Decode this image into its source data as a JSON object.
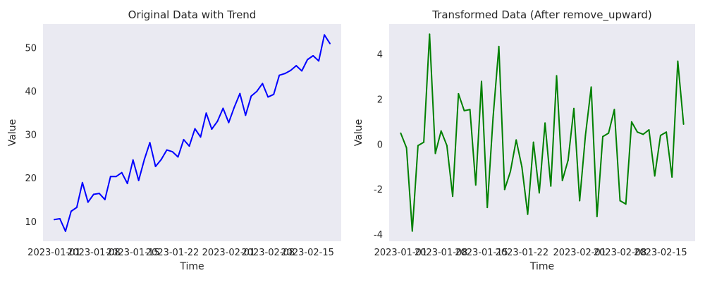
{
  "chart_data": [
    {
      "type": "line",
      "title": "Original Data with Trend",
      "xlabel": "Time",
      "ylabel": "Value",
      "x_start": "2023-01-01",
      "x_ticks": [
        "2023-01-01",
        "2023-01-08",
        "2023-01-15",
        "2023-01-22",
        "2023-02-01",
        "2023-02-08",
        "2023-02-15"
      ],
      "y_ticks": [
        10,
        20,
        30,
        40,
        50
      ],
      "xlim": [
        "2022-12-30",
        "2023-02-21"
      ],
      "ylim": [
        5.5,
        55.5
      ],
      "grid": false,
      "background": "#eaeaf2",
      "series": [
        {
          "color": "#0000ff",
          "values": [
            10.5,
            10.7,
            7.8,
            12.4,
            13.3,
            19.0,
            14.5,
            16.3,
            16.5,
            15.1,
            20.4,
            20.4,
            21.3,
            18.8,
            24.2,
            19.5,
            24.3,
            28.2,
            22.7,
            24.3,
            26.5,
            26.1,
            24.9,
            28.9,
            27.4,
            31.4,
            29.5,
            35.0,
            31.3,
            33.1,
            36.1,
            32.8,
            36.4,
            39.5,
            34.5,
            38.9,
            40.0,
            41.8,
            38.7,
            39.3,
            43.7,
            44.1,
            44.8,
            45.9,
            44.7,
            47.3,
            48.2,
            47.0,
            53.0,
            51.0
          ]
        }
      ]
    },
    {
      "type": "line",
      "title": "Transformed Data (After remove_upward)",
      "xlabel": "Time",
      "ylabel": "Value",
      "x_start": "2023-01-01",
      "x_ticks": [
        "2023-01-01",
        "2023-01-08",
        "2023-01-15",
        "2023-01-22",
        "2023-02-01",
        "2023-02-08",
        "2023-02-15"
      ],
      "y_ticks": [
        -4,
        -2,
        0,
        2,
        4
      ],
      "xlim": [
        "2022-12-30",
        "2023-02-21"
      ],
      "ylim": [
        -4.3,
        5.35
      ],
      "grid": false,
      "background": "#eaeaf2",
      "series": [
        {
          "color": "#008000",
          "values": [
            0.5,
            -0.15,
            -3.85,
            -0.05,
            0.1,
            4.9,
            -0.4,
            0.6,
            -0.05,
            -2.3,
            2.25,
            1.5,
            1.55,
            -1.8,
            2.8,
            -2.8,
            1.2,
            4.35,
            -2.0,
            -1.2,
            0.2,
            -1.0,
            -3.1,
            0.1,
            -2.15,
            0.95,
            -1.85,
            3.05,
            -1.6,
            -0.7,
            1.6,
            -2.5,
            0.4,
            2.55,
            -3.2,
            0.35,
            0.5,
            1.55,
            -2.5,
            -2.65,
            1.0,
            0.55,
            0.45,
            0.65,
            -1.4,
            0.4,
            0.55,
            -1.45,
            3.7,
            0.9
          ]
        }
      ]
    }
  ]
}
